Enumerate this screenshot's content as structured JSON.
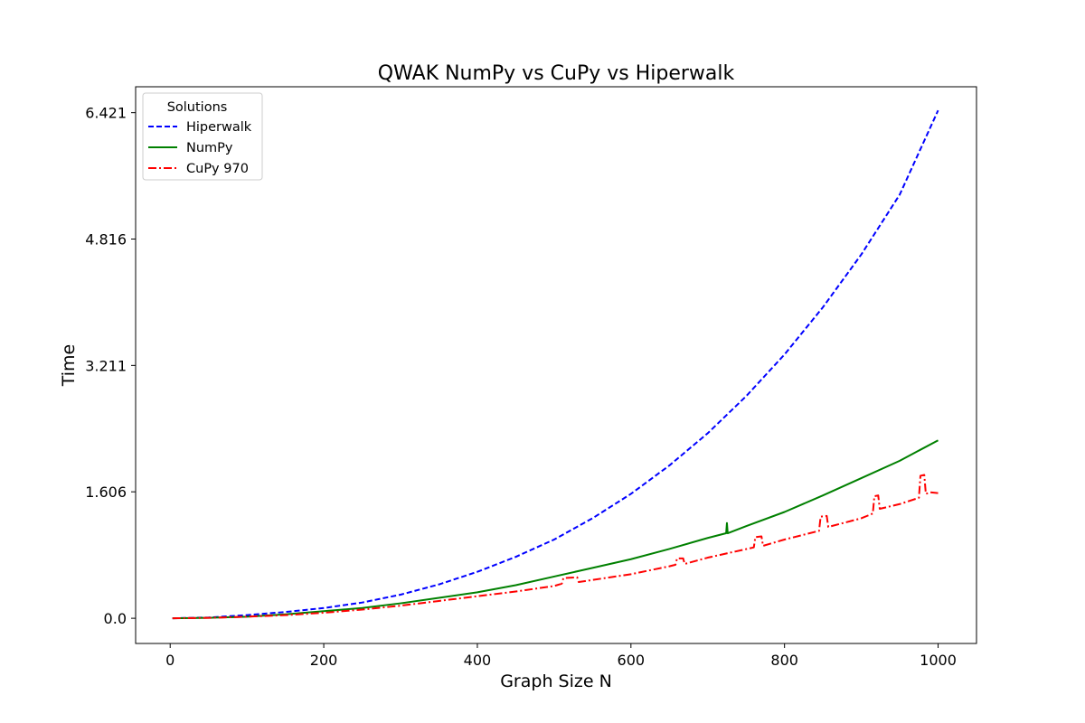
{
  "chart_data": {
    "type": "line",
    "title": "QWAK NumPy vs CuPy vs Hiperwalk",
    "xlabel": "Graph Size N",
    "ylabel": "Time",
    "xlim": [
      -45,
      1050
    ],
    "ylim": [
      -0.32,
      6.75
    ],
    "xticks": [
      0,
      200,
      400,
      600,
      800,
      1000
    ],
    "yticks": [
      0.0,
      1.606,
      3.211,
      4.816,
      6.421
    ],
    "ytick_labels": [
      "0.0",
      "1.606",
      "3.211",
      "4.816",
      "6.421"
    ],
    "grid": false,
    "legend": {
      "title": "Solutions",
      "placement": "top-left"
    },
    "series": [
      {
        "name": "Hiperwalk",
        "color": "#0000ff",
        "style": "dashed",
        "x": [
          3,
          50,
          100,
          150,
          200,
          250,
          300,
          350,
          400,
          450,
          500,
          550,
          600,
          650,
          700,
          750,
          800,
          850,
          900,
          950,
          1000
        ],
        "y": [
          0.0,
          0.01,
          0.04,
          0.08,
          0.13,
          0.2,
          0.3,
          0.43,
          0.59,
          0.78,
          1.0,
          1.27,
          1.58,
          1.94,
          2.35,
          2.82,
          3.35,
          3.95,
          4.62,
          5.38,
          6.45
        ]
      },
      {
        "name": "NumPy",
        "color": "#008000",
        "style": "solid",
        "x": [
          3,
          50,
          100,
          150,
          200,
          250,
          300,
          350,
          400,
          450,
          500,
          550,
          600,
          650,
          700,
          724,
          725,
          726,
          750,
          800,
          850,
          900,
          950,
          1000
        ],
        "y": [
          0.0,
          0.005,
          0.02,
          0.05,
          0.09,
          0.13,
          0.19,
          0.26,
          0.33,
          0.42,
          0.53,
          0.64,
          0.75,
          0.88,
          1.02,
          1.08,
          1.21,
          1.08,
          1.17,
          1.35,
          1.56,
          1.78,
          2.0,
          2.26
        ]
      },
      {
        "name": "CuPy 970",
        "color": "#ff0000",
        "style": "dashdot",
        "x": [
          3,
          50,
          100,
          150,
          200,
          250,
          300,
          350,
          400,
          450,
          500,
          510,
          512,
          530,
          532,
          600,
          650,
          658,
          660,
          668,
          670,
          700,
          760,
          762,
          770,
          772,
          800,
          845,
          847,
          855,
          857,
          900,
          915,
          917,
          922,
          924,
          950,
          975,
          977,
          982,
          984,
          990,
          1000
        ],
        "y": [
          0.0,
          0.005,
          0.02,
          0.04,
          0.07,
          0.11,
          0.16,
          0.22,
          0.28,
          0.34,
          0.41,
          0.44,
          0.51,
          0.52,
          0.46,
          0.56,
          0.66,
          0.68,
          0.76,
          0.76,
          0.69,
          0.77,
          0.9,
          1.03,
          1.04,
          0.92,
          1.0,
          1.11,
          1.29,
          1.3,
          1.16,
          1.27,
          1.33,
          1.55,
          1.56,
          1.39,
          1.45,
          1.53,
          1.81,
          1.82,
          1.58,
          1.6,
          1.59
        ]
      }
    ]
  }
}
